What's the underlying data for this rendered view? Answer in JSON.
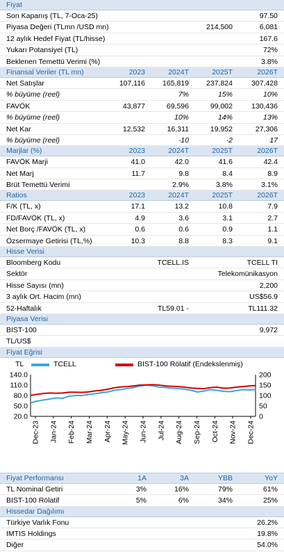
{
  "fiyat": {
    "header": "Fiyat",
    "rows": [
      {
        "label": "Son Kapanış (TL, 7-Oca-25)",
        "v1": "",
        "v2": "97.50"
      },
      {
        "label": "Piyasa Değeri (TLmn /USD mn)",
        "v1": "214,500",
        "v2": "6,081"
      },
      {
        "label": "12 aylık Hedef Fiyat (TL/hisse)",
        "v1": "",
        "v2": "167.6"
      },
      {
        "label": "Yukarı Potansiyel (TL)",
        "v1": "",
        "v2": "72%"
      },
      {
        "label": "Beklenen Temettü Verimi (%)",
        "v1": "",
        "v2": "3.8%"
      }
    ]
  },
  "finansal": {
    "header": "Finansal Veriler (TL mn)",
    "years": [
      "2023",
      "2024T",
      "2025T",
      "2026T"
    ],
    "rows": [
      {
        "label": "Net Satışlar",
        "vals": [
          "107,116",
          "165,819",
          "237,824",
          "307,428"
        ],
        "italic": false
      },
      {
        "label": "% büyüme (reel)",
        "vals": [
          "",
          "7%",
          "15%",
          "10%"
        ],
        "italic": true
      },
      {
        "label": "FAVÖK",
        "vals": [
          "43,877",
          "69,596",
          "99,002",
          "130,436"
        ],
        "italic": false
      },
      {
        "label": "% büyüme (reel)",
        "vals": [
          "",
          "10%",
          "14%",
          "13%"
        ],
        "italic": true
      },
      {
        "label": "Net Kar",
        "vals": [
          "12,532",
          "16,311",
          "19,952",
          "27,306"
        ],
        "italic": false
      },
      {
        "label": "% büyüme (reel)",
        "vals": [
          "",
          "-10",
          "-2",
          "17"
        ],
        "italic": true
      }
    ]
  },
  "marjlar": {
    "header": "Marjlar (%)",
    "years": [
      "2023",
      "2024T",
      "2025T",
      "2026T"
    ],
    "rows": [
      {
        "label": "FAVÖK Marji",
        "vals": [
          "41.0",
          "42.0",
          "41.6",
          "42.4"
        ]
      },
      {
        "label": "Net Marj",
        "vals": [
          "11.7",
          "9.8",
          "8.4",
          "8.9"
        ]
      },
      {
        "label": "Brüt Temettü Verimi",
        "vals": [
          "",
          "2.9%",
          "3.8%",
          "3.1%"
        ]
      }
    ]
  },
  "ratios": {
    "header": "Ratios",
    "years": [
      "2023",
      "2024T",
      "2025T",
      "2026T"
    ],
    "rows": [
      {
        "label": "F/K (TL, x)",
        "vals": [
          "17.1",
          "13.2",
          "10.8",
          "7.9"
        ]
      },
      {
        "label": "FD/FAVÖK (TL, x)",
        "vals": [
          "4.9",
          "3.6",
          "3.1",
          "2.7"
        ]
      },
      {
        "label": "Net Borç /FAVÖK (TL, x)",
        "vals": [
          "0.6",
          "0.6",
          "0.9",
          "1.1"
        ]
      },
      {
        "label": "Özsermaye Getirisi (TL,%)",
        "vals": [
          "10.3",
          "8.8",
          "8.3",
          "9.1"
        ]
      }
    ]
  },
  "hisse": {
    "header": "Hisse Verisi",
    "rows": [
      {
        "label": "Bloomberg Kodu",
        "v1": "TCELL.IS",
        "v2": "TCELL TI"
      },
      {
        "label": "Sektör",
        "v1": "",
        "v2": "Telekomünikasyon"
      },
      {
        "label": "Hisse Sayısı (mn)",
        "v1": "",
        "v2": "2,200"
      },
      {
        "label": "3 aylık Ort. Hacim (mn)",
        "v1": "",
        "v2": "US$56.9"
      },
      {
        "label": "52-Haftalık",
        "v1": "TL59.01 -",
        "v2": "TL111.32"
      }
    ]
  },
  "piyasa": {
    "header": "Piyasa Verisi",
    "rows": [
      {
        "label": "BIST-100",
        "v1": "",
        "v2": "9,972"
      },
      {
        "label": "TL/US$",
        "v1": "",
        "v2": ""
      }
    ]
  },
  "egri": {
    "header": "Fiyat Eğrisi"
  },
  "chart_data": {
    "type": "line",
    "left_axis_label": "TL",
    "legend": [
      "TCELL",
      "BIST-100 Rölatif (Endekslenmiş)"
    ],
    "colors": {
      "tcell": "#3aa8dc",
      "bist": "#d40000"
    },
    "x_labels": [
      "Dec-23",
      "Jan-24",
      "Feb-24",
      "Mar-24",
      "Apr-24",
      "May-24",
      "Jun-24",
      "Jul-24",
      "Aug-24",
      "Sep-24",
      "Oct-24",
      "Nov-24",
      "Dec-24"
    ],
    "y_left_ticks": [
      "20.0",
      "50.0",
      "80.0",
      "110.0",
      "140.0"
    ],
    "y_right_ticks": [
      "0",
      "50",
      "100",
      "150",
      "200"
    ],
    "y_left_range": [
      20,
      140
    ],
    "y_right_range": [
      0,
      200
    ],
    "series": [
      {
        "name": "TCELL",
        "axis": "left",
        "values": [
          59,
          64,
          67,
          70,
          73,
          72,
          78,
          80,
          80,
          83,
          85,
          88,
          90,
          95,
          97,
          100,
          103,
          107,
          110,
          108,
          104,
          103,
          101,
          100,
          98,
          95,
          90,
          93,
          97,
          95,
          92,
          91,
          94,
          97,
          96,
          97
        ]
      },
      {
        "name": "BIST-100 Rölatif (Endekslenmiş)",
        "axis": "right",
        "values": [
          100,
          106,
          110,
          112,
          111,
          112,
          116,
          116,
          115,
          117,
          122,
          125,
          130,
          137,
          141,
          143,
          146,
          150,
          151,
          152,
          150,
          146,
          144,
          143,
          140,
          136,
          134,
          133,
          138,
          140,
          135,
          136,
          140,
          143,
          146,
          148
        ]
      }
    ]
  },
  "perf": {
    "header": {
      "label": "Fiyat Performansı",
      "cols": [
        "1A",
        "3A",
        "YBB",
        "YoY"
      ]
    },
    "rows": [
      {
        "label": "TL Nominal Getiri",
        "vals": [
          "3%",
          "16%",
          "79%",
          "61%"
        ]
      },
      {
        "label": "BIST-100 Rölatif",
        "vals": [
          "5%",
          "6%",
          "34%",
          "25%"
        ]
      }
    ]
  },
  "hissedar": {
    "header": "Hissedar Dağılımı",
    "rows": [
      {
        "label": "Türkiye Varlık Fonu",
        "v2": "26.2%"
      },
      {
        "label": "IMTIS Holdings",
        "v2": "19.8%"
      },
      {
        "label": "Diğer",
        "v2": "54.0%"
      }
    ]
  }
}
